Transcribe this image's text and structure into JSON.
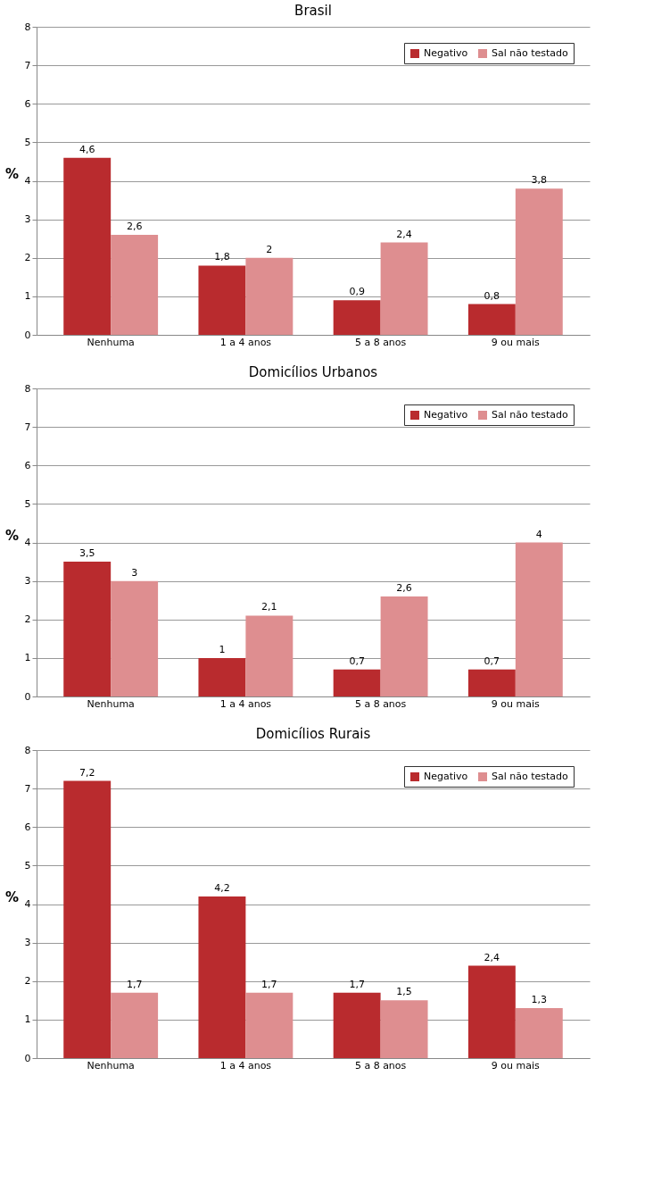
{
  "chart_data": [
    {
      "type": "bar",
      "title": "Brasil",
      "ylabel": "%",
      "categories": [
        "Nenhuma",
        "1 a 4 anos",
        "5 a 8 anos",
        "9 ou mais"
      ],
      "series": [
        {
          "name": "Negativo",
          "color": "#b92b2e",
          "values": [
            4.6,
            1.8,
            0.9,
            0.8
          ],
          "value_labels": [
            "4,6",
            "1,8",
            "0,9",
            "0,8"
          ]
        },
        {
          "name": "Sal não testado",
          "color": "#de8e90",
          "values": [
            2.6,
            2,
            2.4,
            3.8
          ],
          "value_labels": [
            "2,6",
            "2",
            "2,4",
            "3,8"
          ]
        }
      ],
      "ylim": [
        0,
        8
      ],
      "yticks": [
        0,
        1,
        2,
        3,
        4,
        5,
        6,
        7,
        8
      ],
      "grid": "y",
      "legend": "top right"
    },
    {
      "type": "bar",
      "title": "Domicílios Urbanos",
      "ylabel": "%",
      "categories": [
        "Nenhuma",
        "1 a 4 anos",
        "5 a 8 anos",
        "9 ou mais"
      ],
      "series": [
        {
          "name": "Negativo",
          "color": "#b92b2e",
          "values": [
            3.5,
            1,
            0.7,
            0.7
          ],
          "value_labels": [
            "3,5",
            "1",
            "0,7",
            "0,7"
          ]
        },
        {
          "name": "Sal não testado",
          "color": "#de8e90",
          "values": [
            3,
            2.1,
            2.6,
            4
          ],
          "value_labels": [
            "3",
            "2,1",
            "2,6",
            "4"
          ]
        }
      ],
      "ylim": [
        0,
        8
      ],
      "yticks": [
        0,
        1,
        2,
        3,
        4,
        5,
        6,
        7,
        8
      ],
      "grid": "y",
      "legend": "top right"
    },
    {
      "type": "bar",
      "title": "Domicílios Rurais",
      "ylabel": "%",
      "categories": [
        "Nenhuma",
        "1 a 4 anos",
        "5 a 8 anos",
        "9 ou mais"
      ],
      "series": [
        {
          "name": "Negativo",
          "color": "#b92b2e",
          "values": [
            7.2,
            4.2,
            1.7,
            2.4
          ],
          "value_labels": [
            "7,2",
            "4,2",
            "1,7",
            "2,4"
          ]
        },
        {
          "name": "Sal não testado",
          "color": "#de8e90",
          "values": [
            1.7,
            1.7,
            1.5,
            1.3
          ],
          "value_labels": [
            "1,7",
            "1,7",
            "1,5",
            "1,3"
          ]
        }
      ],
      "ylim": [
        0,
        8
      ],
      "yticks": [
        0,
        1,
        2,
        3,
        4,
        5,
        6,
        7,
        8
      ],
      "grid": "y",
      "legend": "top right"
    }
  ]
}
